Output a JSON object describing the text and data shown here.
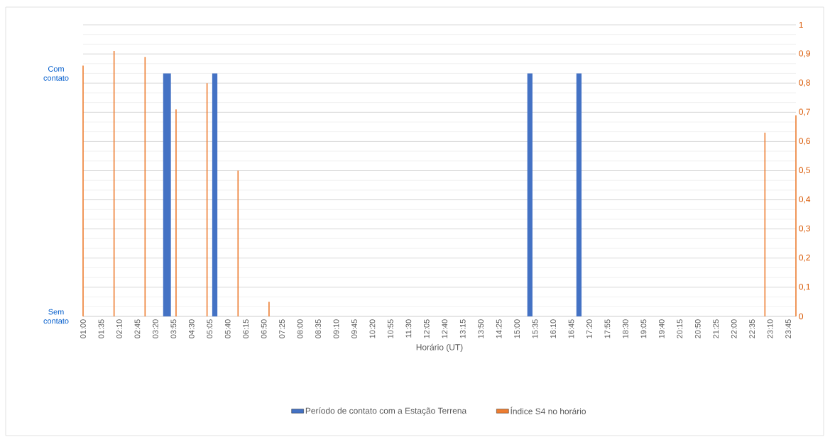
{
  "chart_data": {
    "type": "bar",
    "xlabel": "Horário (UT)",
    "legend": "bottom",
    "grid": "y",
    "annotations": [
      "Com contato",
      "Sem contato"
    ],
    "xlim": [
      1,
      24
    ],
    "xticks": [
      {
        "value": 1,
        "label": "01:00"
      },
      {
        "value": 1.583333,
        "label": "01:35"
      },
      {
        "value": 2.166667,
        "label": "02:10"
      },
      {
        "value": 2.75,
        "label": "02:45"
      },
      {
        "value": 3.333333,
        "label": "03:20"
      },
      {
        "value": 3.916667,
        "label": "03:55"
      },
      {
        "value": 4.5,
        "label": "04:30"
      },
      {
        "value": 5.083333,
        "label": "05:05"
      },
      {
        "value": 5.666667,
        "label": "05:40"
      },
      {
        "value": 6.25,
        "label": "06:15"
      },
      {
        "value": 6.833333,
        "label": "06:50"
      },
      {
        "value": 7.416667,
        "label": "07:25"
      },
      {
        "value": 8,
        "label": "08:00"
      },
      {
        "value": 8.583333,
        "label": "08:35"
      },
      {
        "value": 9.166667,
        "label": "09:10"
      },
      {
        "value": 9.75,
        "label": "09:45"
      },
      {
        "value": 10.333333,
        "label": "10:20"
      },
      {
        "value": 10.916667,
        "label": "10:55"
      },
      {
        "value": 11.5,
        "label": "11:30"
      },
      {
        "value": 12.083333,
        "label": "12:05"
      },
      {
        "value": 12.666667,
        "label": "12:40"
      },
      {
        "value": 13.25,
        "label": "13:15"
      },
      {
        "value": 13.833333,
        "label": "13:50"
      },
      {
        "value": 14.416667,
        "label": "14:25"
      },
      {
        "value": 15,
        "label": "15:00"
      },
      {
        "value": 15.583333,
        "label": "15:35"
      },
      {
        "value": 16.166667,
        "label": "16:10"
      },
      {
        "value": 16.75,
        "label": "16:45"
      },
      {
        "value": 17.333333,
        "label": "17:20"
      },
      {
        "value": 17.916667,
        "label": "17:55"
      },
      {
        "value": 18.5,
        "label": "18:30"
      },
      {
        "value": 19.083333,
        "label": "19:05"
      },
      {
        "value": 19.666667,
        "label": "19:40"
      },
      {
        "value": 20.25,
        "label": "20:15"
      },
      {
        "value": 20.833333,
        "label": "20:50"
      },
      {
        "value": 21.416667,
        "label": "21:25"
      },
      {
        "value": 22,
        "label": "22:00"
      },
      {
        "value": 22.583333,
        "label": "22:35"
      },
      {
        "value": 23.166667,
        "label": "23:10"
      },
      {
        "value": 23.75,
        "label": "23:45"
      }
    ],
    "ylim": [
      0,
      1
    ],
    "yticks": [
      0,
      {
        "value": 0.1,
        "label": "0,1"
      },
      {
        "value": 0.2,
        "label": "0,2"
      },
      {
        "value": 0.3,
        "label": "0,3"
      },
      {
        "value": 0.4,
        "label": "0,4"
      },
      {
        "value": 0.5,
        "label": "0,5"
      },
      {
        "value": 0.6,
        "label": "0,6"
      },
      {
        "value": 0.7,
        "label": "0,7"
      },
      {
        "value": 0.8,
        "label": "0,8"
      },
      {
        "value": 0.9,
        "label": "0,9"
      },
      1
    ],
    "bands": [
      {
        "axis": "x",
        "from": 3.583333,
        "to": 3.833333,
        "color": "#4472c4",
        "label": "Período de contato com a Estação Terrena"
      },
      {
        "axis": "x",
        "from": 5.166667,
        "to": 5.333333,
        "color": "#4472c4"
      },
      {
        "axis": "x",
        "from": 15.333333,
        "to": 15.5,
        "color": "#4472c4"
      },
      {
        "axis": "x",
        "from": 16.916667,
        "to": 17.083333,
        "color": "#4472c4"
      }
    ],
    "series": [
      {
        "name": "Índice S4 no horário",
        "color": "#ed7d31",
        "x": [
          1,
          2,
          3,
          4,
          5,
          6,
          7,
          23,
          24
        ],
        "values": [
          0.86,
          0.91,
          0.89,
          0.71,
          0.8,
          0.5,
          0.05,
          0.63,
          0.69
        ]
      }
    ]
  }
}
